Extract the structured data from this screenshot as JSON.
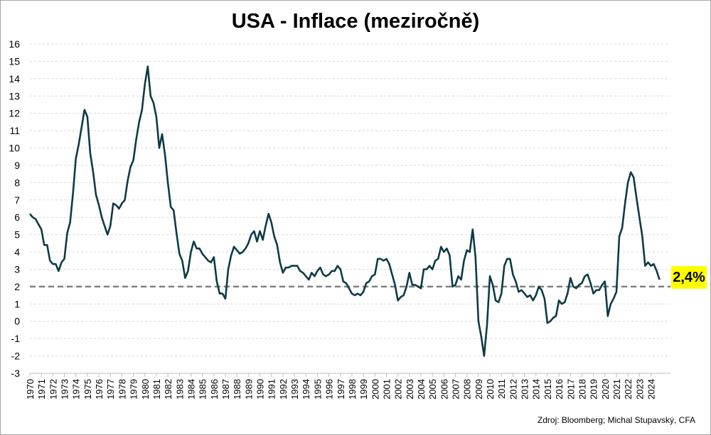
{
  "chart_data": {
    "type": "line",
    "title": "USA - Inflace (meziročně)",
    "source": "Zdroj: Bloomberg; Michal Stupavský, CFA",
    "ylim": [
      -3,
      16
    ],
    "yticks": [
      -3,
      -2,
      -1,
      0,
      1,
      2,
      3,
      4,
      5,
      6,
      7,
      8,
      9,
      10,
      11,
      12,
      13,
      14,
      15,
      16
    ],
    "xlim": [
      1970,
      2025.7
    ],
    "xticks": [
      "1970",
      "1971",
      "1972",
      "1973",
      "1974",
      "1975",
      "1976",
      "1977",
      "1978",
      "1979",
      "1980",
      "1981",
      "1982",
      "1983",
      "1984",
      "1985",
      "1986",
      "1987",
      "1988",
      "1989",
      "1990",
      "1991",
      "1992",
      "1993",
      "1994",
      "1995",
      "1996",
      "1997",
      "1998",
      "1999",
      "2000",
      "2001",
      "2002",
      "2003",
      "2004",
      "2005",
      "2006",
      "2007",
      "2008",
      "2009",
      "2010",
      "2011",
      "2012",
      "2013",
      "2014",
      "2015",
      "2016",
      "2017",
      "2018",
      "2019",
      "2020",
      "2021",
      "2022",
      "2023",
      "2024"
    ],
    "grid": true,
    "reference_line": {
      "y": 2,
      "style": "dashed"
    },
    "last_value_label": "2,4%",
    "colors": {
      "line": "#0d3b45",
      "reference": "#808080",
      "badge": "#ffff00"
    },
    "series": [
      {
        "values": [
          [
            1970.0,
            6.2
          ],
          [
            1970.25,
            6.0
          ],
          [
            1970.5,
            5.9
          ],
          [
            1970.75,
            5.6
          ],
          [
            1971.0,
            5.3
          ],
          [
            1971.25,
            4.4
          ],
          [
            1971.5,
            4.4
          ],
          [
            1971.75,
            3.5
          ],
          [
            1972.0,
            3.3
          ],
          [
            1972.25,
            3.3
          ],
          [
            1972.5,
            2.9
          ],
          [
            1972.75,
            3.4
          ],
          [
            1973.0,
            3.6
          ],
          [
            1973.25,
            5.1
          ],
          [
            1973.5,
            5.7
          ],
          [
            1973.75,
            7.4
          ],
          [
            1974.0,
            9.4
          ],
          [
            1974.25,
            10.2
          ],
          [
            1974.5,
            11.2
          ],
          [
            1974.75,
            12.2
          ],
          [
            1975.0,
            11.8
          ],
          [
            1975.25,
            9.7
          ],
          [
            1975.5,
            8.6
          ],
          [
            1975.75,
            7.3
          ],
          [
            1976.0,
            6.7
          ],
          [
            1976.25,
            6.0
          ],
          [
            1976.5,
            5.5
          ],
          [
            1976.75,
            5.0
          ],
          [
            1977.0,
            5.5
          ],
          [
            1977.25,
            6.8
          ],
          [
            1977.5,
            6.7
          ],
          [
            1977.75,
            6.5
          ],
          [
            1978.0,
            6.8
          ],
          [
            1978.25,
            7.0
          ],
          [
            1978.5,
            8.1
          ],
          [
            1978.75,
            8.9
          ],
          [
            1979.0,
            9.3
          ],
          [
            1979.25,
            10.5
          ],
          [
            1979.5,
            11.5
          ],
          [
            1979.75,
            12.2
          ],
          [
            1980.0,
            13.7
          ],
          [
            1980.25,
            14.7
          ],
          [
            1980.5,
            13.0
          ],
          [
            1980.75,
            12.6
          ],
          [
            1981.0,
            11.8
          ],
          [
            1981.25,
            10.0
          ],
          [
            1981.5,
            10.8
          ],
          [
            1981.75,
            9.6
          ],
          [
            1982.0,
            8.0
          ],
          [
            1982.25,
            6.6
          ],
          [
            1982.5,
            6.4
          ],
          [
            1982.75,
            5.1
          ],
          [
            1983.0,
            3.9
          ],
          [
            1983.25,
            3.5
          ],
          [
            1983.5,
            2.5
          ],
          [
            1983.75,
            2.9
          ],
          [
            1984.0,
            4.0
          ],
          [
            1984.25,
            4.6
          ],
          [
            1984.5,
            4.2
          ],
          [
            1984.75,
            4.2
          ],
          [
            1985.0,
            3.9
          ],
          [
            1985.25,
            3.7
          ],
          [
            1985.5,
            3.5
          ],
          [
            1985.75,
            3.4
          ],
          [
            1986.0,
            3.7
          ],
          [
            1986.25,
            2.3
          ],
          [
            1986.5,
            1.6
          ],
          [
            1986.75,
            1.6
          ],
          [
            1987.0,
            1.3
          ],
          [
            1987.25,
            3.0
          ],
          [
            1987.5,
            3.8
          ],
          [
            1987.75,
            4.3
          ],
          [
            1988.0,
            4.1
          ],
          [
            1988.25,
            3.9
          ],
          [
            1988.5,
            4.0
          ],
          [
            1988.75,
            4.2
          ],
          [
            1989.0,
            4.5
          ],
          [
            1989.25,
            5.0
          ],
          [
            1989.5,
            5.2
          ],
          [
            1989.75,
            4.6
          ],
          [
            1990.0,
            5.2
          ],
          [
            1990.25,
            4.7
          ],
          [
            1990.5,
            5.5
          ],
          [
            1990.75,
            6.2
          ],
          [
            1991.0,
            5.7
          ],
          [
            1991.25,
            4.9
          ],
          [
            1991.5,
            4.4
          ],
          [
            1991.75,
            3.4
          ],
          [
            1992.0,
            2.8
          ],
          [
            1992.25,
            3.1
          ],
          [
            1992.5,
            3.1
          ],
          [
            1992.75,
            3.2
          ],
          [
            1993.0,
            3.2
          ],
          [
            1993.25,
            3.2
          ],
          [
            1993.5,
            2.9
          ],
          [
            1993.75,
            2.8
          ],
          [
            1994.0,
            2.6
          ],
          [
            1994.25,
            2.4
          ],
          [
            1994.5,
            2.8
          ],
          [
            1994.75,
            2.6
          ],
          [
            1995.0,
            2.9
          ],
          [
            1995.25,
            3.1
          ],
          [
            1995.5,
            2.7
          ],
          [
            1995.75,
            2.6
          ],
          [
            1996.0,
            2.7
          ],
          [
            1996.25,
            2.9
          ],
          [
            1996.5,
            2.9
          ],
          [
            1996.75,
            3.2
          ],
          [
            1997.0,
            3.0
          ],
          [
            1997.25,
            2.3
          ],
          [
            1997.5,
            2.2
          ],
          [
            1997.75,
            1.9
          ],
          [
            1998.0,
            1.6
          ],
          [
            1998.25,
            1.5
          ],
          [
            1998.5,
            1.6
          ],
          [
            1998.75,
            1.5
          ],
          [
            1999.0,
            1.7
          ],
          [
            1999.25,
            2.2
          ],
          [
            1999.5,
            2.3
          ],
          [
            1999.75,
            2.6
          ],
          [
            2000.0,
            2.7
          ],
          [
            2000.25,
            3.6
          ],
          [
            2000.5,
            3.6
          ],
          [
            2000.75,
            3.5
          ],
          [
            2001.0,
            3.6
          ],
          [
            2001.25,
            3.3
          ],
          [
            2001.5,
            2.7
          ],
          [
            2001.75,
            2.1
          ],
          [
            2002.0,
            1.2
          ],
          [
            2002.25,
            1.4
          ],
          [
            2002.5,
            1.5
          ],
          [
            2002.75,
            2.0
          ],
          [
            2003.0,
            2.8
          ],
          [
            2003.25,
            2.1
          ],
          [
            2003.5,
            2.1
          ],
          [
            2003.75,
            2.0
          ],
          [
            2004.0,
            1.9
          ],
          [
            2004.25,
            3.0
          ],
          [
            2004.5,
            3.0
          ],
          [
            2004.75,
            3.2
          ],
          [
            2005.0,
            3.0
          ],
          [
            2005.25,
            3.5
          ],
          [
            2005.5,
            3.6
          ],
          [
            2005.75,
            4.3
          ],
          [
            2006.0,
            4.0
          ],
          [
            2006.25,
            4.2
          ],
          [
            2006.5,
            3.8
          ],
          [
            2006.75,
            2.0
          ],
          [
            2007.0,
            2.1
          ],
          [
            2007.25,
            2.6
          ],
          [
            2007.5,
            2.4
          ],
          [
            2007.75,
            3.5
          ],
          [
            2008.0,
            4.1
          ],
          [
            2008.25,
            4.0
          ],
          [
            2008.5,
            5.3
          ],
          [
            2008.75,
            3.7
          ],
          [
            2009.0,
            0.0
          ],
          [
            2009.25,
            -0.9
          ],
          [
            2009.5,
            -2.0
          ],
          [
            2009.75,
            -0.2
          ],
          [
            2010.0,
            2.6
          ],
          [
            2010.25,
            2.1
          ],
          [
            2010.5,
            1.2
          ],
          [
            2010.75,
            1.1
          ],
          [
            2011.0,
            1.6
          ],
          [
            2011.25,
            3.2
          ],
          [
            2011.5,
            3.6
          ],
          [
            2011.75,
            3.6
          ],
          [
            2012.0,
            2.7
          ],
          [
            2012.25,
            2.3
          ],
          [
            2012.5,
            1.7
          ],
          [
            2012.75,
            1.8
          ],
          [
            2013.0,
            1.6
          ],
          [
            2013.25,
            1.4
          ],
          [
            2013.5,
            1.5
          ],
          [
            2013.75,
            1.2
          ],
          [
            2014.0,
            1.5
          ],
          [
            2014.25,
            2.0
          ],
          [
            2014.5,
            1.8
          ],
          [
            2014.75,
            1.3
          ],
          [
            2015.0,
            -0.1
          ],
          [
            2015.25,
            0.0
          ],
          [
            2015.5,
            0.2
          ],
          [
            2015.75,
            0.3
          ],
          [
            2016.0,
            1.2
          ],
          [
            2016.25,
            1.0
          ],
          [
            2016.5,
            1.1
          ],
          [
            2016.75,
            1.6
          ],
          [
            2017.0,
            2.5
          ],
          [
            2017.25,
            2.0
          ],
          [
            2017.5,
            1.9
          ],
          [
            2017.75,
            2.1
          ],
          [
            2018.0,
            2.2
          ],
          [
            2018.25,
            2.6
          ],
          [
            2018.5,
            2.7
          ],
          [
            2018.75,
            2.2
          ],
          [
            2019.0,
            1.6
          ],
          [
            2019.25,
            1.8
          ],
          [
            2019.5,
            1.8
          ],
          [
            2019.75,
            2.1
          ],
          [
            2020.0,
            2.3
          ],
          [
            2020.25,
            0.3
          ],
          [
            2020.5,
            1.0
          ],
          [
            2020.75,
            1.3
          ],
          [
            2021.0,
            1.7
          ],
          [
            2021.25,
            4.9
          ],
          [
            2021.5,
            5.4
          ],
          [
            2021.75,
            6.8
          ],
          [
            2022.0,
            8.0
          ],
          [
            2022.25,
            8.6
          ],
          [
            2022.5,
            8.3
          ],
          [
            2022.75,
            7.1
          ],
          [
            2023.0,
            6.0
          ],
          [
            2023.25,
            4.9
          ],
          [
            2023.5,
            3.2
          ],
          [
            2023.75,
            3.4
          ],
          [
            2024.0,
            3.2
          ],
          [
            2024.25,
            3.3
          ],
          [
            2024.5,
            2.9
          ],
          [
            2024.75,
            2.4
          ]
        ]
      }
    ]
  }
}
